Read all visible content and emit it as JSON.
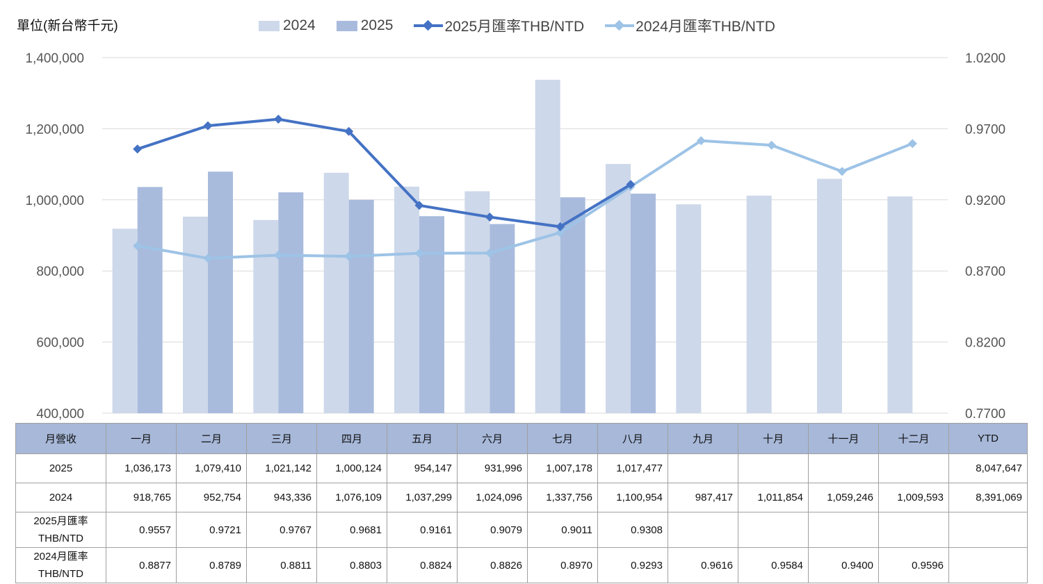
{
  "unit_label": "單位(新台幣千元)",
  "legend": [
    {
      "label": "2024",
      "kind": "bar",
      "color": "#cdd8ea"
    },
    {
      "label": "2025",
      "kind": "bar",
      "color": "#a9bbdd"
    },
    {
      "label": "2025月匯率THB/NTD",
      "kind": "line",
      "color": "#4472c4"
    },
    {
      "label": "2024月匯率THB/NTD",
      "kind": "line",
      "color": "#9dc3e6"
    }
  ],
  "chart_data": {
    "type": "bar",
    "categories": [
      "一月",
      "二月",
      "三月",
      "四月",
      "五月",
      "六月",
      "七月",
      "八月",
      "九月",
      "十月",
      "十一月",
      "十二月"
    ],
    "series": [
      {
        "name": "2024",
        "type": "bar",
        "axis": "left",
        "color": "#cdd8ea",
        "values": [
          918765,
          952754,
          943336,
          1076109,
          1037299,
          1024096,
          1337756,
          1100954,
          987417,
          1011854,
          1059246,
          1009593
        ]
      },
      {
        "name": "2025",
        "type": "bar",
        "axis": "left",
        "color": "#a9bbdd",
        "values": [
          1036173,
          1079410,
          1021142,
          1000124,
          954147,
          931996,
          1007178,
          1017477,
          null,
          null,
          null,
          null
        ]
      },
      {
        "name": "2025月匯率THB/NTD",
        "type": "line",
        "axis": "right",
        "color": "#4472c4",
        "values": [
          0.9557,
          0.9721,
          0.9767,
          0.9681,
          0.9161,
          0.9079,
          0.9011,
          0.9308,
          null,
          null,
          null,
          null
        ]
      },
      {
        "name": "2024月匯率THB/NTD",
        "type": "line",
        "axis": "right",
        "color": "#9dc3e6",
        "values": [
          0.8877,
          0.8789,
          0.8811,
          0.8803,
          0.8824,
          0.8826,
          0.897,
          0.9293,
          0.9616,
          0.9584,
          0.94,
          0.9596
        ]
      }
    ],
    "y_left": {
      "min": 400000,
      "max": 1400000,
      "step": 200000,
      "ticks": [
        "400,000",
        "600,000",
        "800,000",
        "1,000,000",
        "1,200,000",
        "1,400,000"
      ]
    },
    "y_right": {
      "min": 0.77,
      "max": 1.02,
      "step": 0.05,
      "ticks": [
        "0.7700",
        "0.8200",
        "0.8700",
        "0.9200",
        "0.9700",
        "1.0200"
      ]
    },
    "grid": true,
    "legend_position": "top"
  },
  "table": {
    "header_label": "月營收",
    "months": [
      "一月",
      "二月",
      "三月",
      "四月",
      "五月",
      "六月",
      "七月",
      "八月",
      "九月",
      "十月",
      "十一月",
      "十二月"
    ],
    "ytd_label": "YTD",
    "rows": [
      {
        "label": "2025",
        "values": [
          "1,036,173",
          "1,079,410",
          "1,021,142",
          "1,000,124",
          "954,147",
          "931,996",
          "1,007,178",
          "1,017,477",
          "",
          "",
          "",
          ""
        ],
        "ytd": "8,047,647"
      },
      {
        "label": "2024",
        "values": [
          "918,765",
          "952,754",
          "943,336",
          "1,076,109",
          "1,037,299",
          "1,024,096",
          "1,337,756",
          "1,100,954",
          "987,417",
          "1,011,854",
          "1,059,246",
          "1,009,593"
        ],
        "ytd": "8,391,069"
      },
      {
        "label": "2025月匯率 THB/NTD",
        "values": [
          "0.9557",
          "0.9721",
          "0.9767",
          "0.9681",
          "0.9161",
          "0.9079",
          "0.9011",
          "0.9308",
          "",
          "",
          "",
          ""
        ],
        "ytd": ""
      },
      {
        "label": "2024月匯率 THB/NTD",
        "values": [
          "0.8877",
          "0.8789",
          "0.8811",
          "0.8803",
          "0.8824",
          "0.8826",
          "0.8970",
          "0.9293",
          "0.9616",
          "0.9584",
          "0.9400",
          "0.9596"
        ],
        "ytd": ""
      }
    ]
  }
}
